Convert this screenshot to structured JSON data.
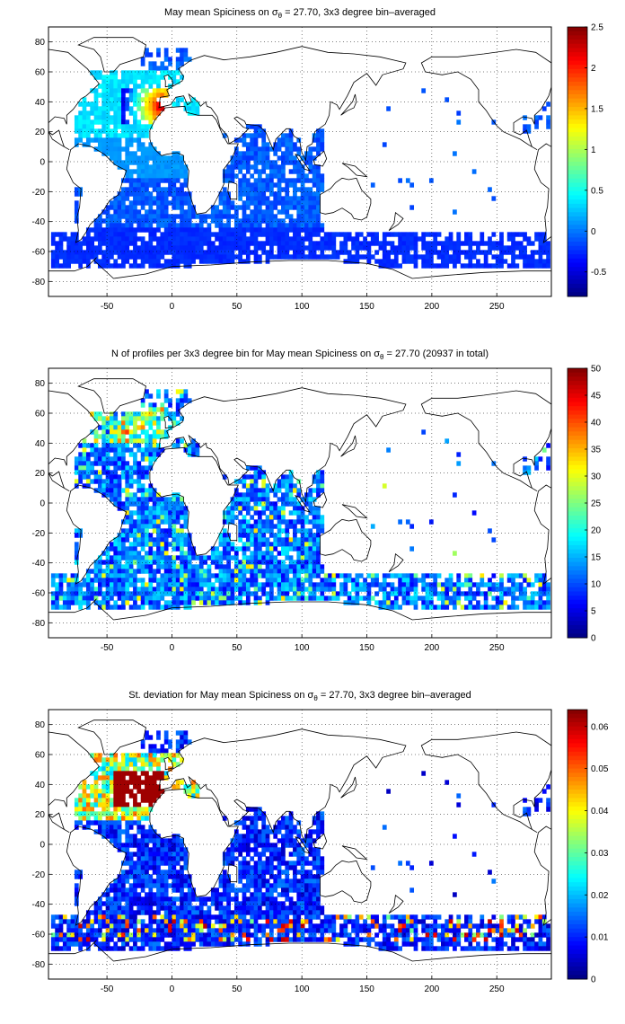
{
  "figure": {
    "panels": [
      {
        "title_pre": "May mean Spiciness on σ",
        "title_sub": "θ",
        "title_post": " = 27.70, 3x3 degree bin–averaged",
        "colorbar": {
          "ticks": [
            "2.5",
            "2",
            "1.5",
            "1",
            "0.5",
            "0",
            "-0.5"
          ],
          "min": -0.8,
          "max": 2.5
        },
        "field": "spiciness"
      },
      {
        "title_pre": "N of profiles per 3x3 degree bin for May mean Spiciness on σ",
        "title_sub": "θ",
        "title_post": " = 27.70 (20937 in total)",
        "colorbar": {
          "ticks": [
            "50",
            "45",
            "40",
            "35",
            "30",
            "25",
            "20",
            "15",
            "10",
            "5",
            "0"
          ],
          "min": 0,
          "max": 50
        },
        "field": "count"
      },
      {
        "title_pre": "St. deviation for May mean Spiciness on σ",
        "title_sub": "θ",
        "title_post": " = 27.70, 3x3 degree bin–averaged",
        "colorbar": {
          "ticks": [
            "0.06",
            "0.05",
            "0.04",
            "0.03",
            "0.02",
            "0.01",
            "0"
          ],
          "min": 0,
          "max": 0.064
        },
        "field": "stdev"
      }
    ],
    "x_ticks": [
      "-50",
      "0",
      "50",
      "100",
      "150",
      "200",
      "250"
    ],
    "y_ticks": [
      "80",
      "60",
      "40",
      "20",
      "0",
      "-20",
      "-40",
      "-60",
      "-80"
    ],
    "x_range": [
      -95,
      292
    ],
    "y_range": [
      -90,
      90
    ],
    "colormap": "jet"
  }
}
